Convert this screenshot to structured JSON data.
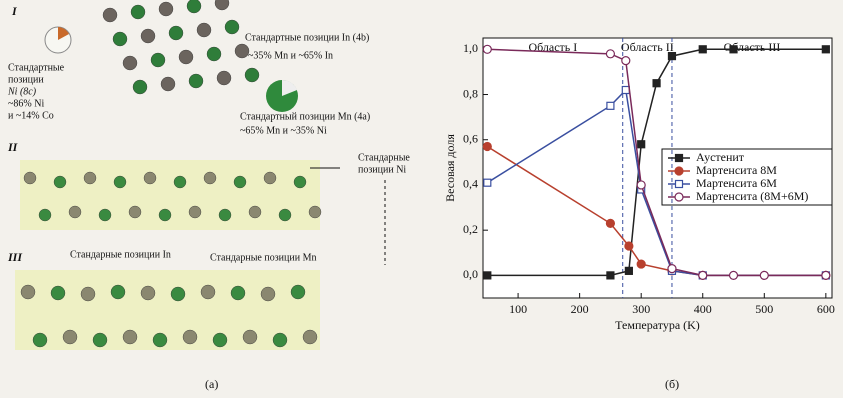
{
  "chart_data": {
    "type": "line",
    "xlabel": "Температура (K)",
    "ylabel": "Весовая доля",
    "xlim": [
      43,
      610
    ],
    "ylim": [
      -0.1,
      1.05
    ],
    "xticks": [
      100,
      200,
      300,
      400,
      500,
      600
    ],
    "yticks": [
      {
        "value": 0,
        "label": "0,0"
      },
      {
        "value": 0.2,
        "label": "0,2"
      },
      {
        "value": 0.4,
        "label": "0,4"
      },
      {
        "value": 0.6,
        "label": "0,6"
      },
      {
        "value": 0.8,
        "label": "0,8"
      },
      {
        "value": 1.0,
        "label": "1,0"
      }
    ],
    "regions": [
      "Область I",
      "Область II",
      "Область III"
    ],
    "boundaries": [
      270,
      350
    ],
    "series": [
      {
        "name": "Аустенит",
        "color": "#222222",
        "marker": "square-filled",
        "x": [
          50,
          250,
          280,
          300,
          325,
          350,
          400,
          450,
          600
        ],
        "values": [
          0,
          0,
          0.02,
          0.58,
          0.85,
          0.97,
          1.0,
          1.0,
          1.0
        ]
      },
      {
        "name": "Мартенсита 8M",
        "color": "#b8402e",
        "marker": "circle-filled",
        "x": [
          50,
          250,
          280,
          300,
          350,
          400,
          600
        ],
        "values": [
          0.57,
          0.23,
          0.13,
          0.05,
          0.02,
          0,
          0
        ]
      },
      {
        "name": "Мартенсита 6M",
        "color": "#3a4fa0",
        "marker": "square-open",
        "x": [
          50,
          250,
          275,
          300,
          350,
          400,
          600
        ],
        "values": [
          0.41,
          0.75,
          0.82,
          0.38,
          0.02,
          0,
          0
        ]
      },
      {
        "name": "Мартенсита (8M+6M)",
        "color": "#7a2a5a",
        "marker": "circle-open",
        "x": [
          50,
          250,
          275,
          300,
          350,
          400,
          450,
          500,
          600
        ],
        "values": [
          1.0,
          0.98,
          0.95,
          0.4,
          0.03,
          0,
          0,
          0,
          0
        ]
      }
    ]
  },
  "diagram": {
    "panel_i": "I",
    "panel_ii": "II",
    "panel_iii": "III",
    "ni_label": [
      "Стандартные",
      "позиции",
      "Ni (8c)",
      "~86% Ni",
      "и ~14% Co"
    ],
    "in_label": [
      "Стандартные позиции In (4b)",
      "~35% Mn и ~65% In"
    ],
    "mn_label": [
      "Стандартный позиции Mn (4a)",
      "~65% Mn и ~35% Ni"
    ],
    "ni2_label": [
      "Стандарные",
      "позиции Ni"
    ],
    "in2_label": "Стандарные позиции In",
    "mn2_label": "Стандарные позиции Mn",
    "caption_a": "(a)",
    "caption_b": "(б)"
  }
}
